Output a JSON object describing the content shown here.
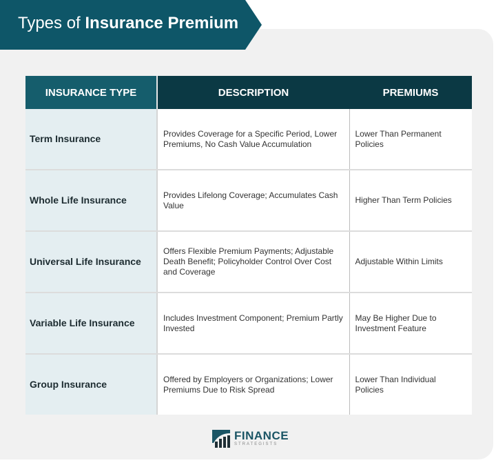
{
  "title": {
    "prefix": "Types of",
    "bold": "Insurance Premium"
  },
  "table": {
    "headers": [
      "INSURANCE TYPE",
      "DESCRIPTION",
      "PREMIUMS"
    ],
    "rows": [
      {
        "type": "Term Insurance",
        "description": "Provides Coverage for a Specific Period, Lower Premiums, No Cash Value Accumulation",
        "premiums": "Lower Than Permanent Policies"
      },
      {
        "type": "Whole Life Insurance",
        "description": "Provides Lifelong Coverage; Accumulates Cash Value",
        "premiums": "Higher Than Term Policies"
      },
      {
        "type": "Universal Life Insurance",
        "description": "Offers Flexible Premium Payments; Adjustable Death Benefit; Policyholder Control Over Cost and Coverage",
        "premiums": "Adjustable Within Limits"
      },
      {
        "type": "Variable Life Insurance",
        "description": "Includes Investment Component; Premium Partly Invested",
        "premiums": "May Be Higher Due to Investment Feature"
      },
      {
        "type": "Group Insurance",
        "description": "Offered by Employers or Organizations; Lower Premiums Due to Risk Spread",
        "premiums": "Lower Than Individual Policies"
      }
    ]
  },
  "logo": {
    "main": "FINANCE",
    "sub": "STRATEGISTS"
  },
  "colors": {
    "banner": "#0e5668",
    "header_dark": "#0b3944",
    "header_teal": "#155d6c",
    "type_cell": "#e4eef1"
  }
}
